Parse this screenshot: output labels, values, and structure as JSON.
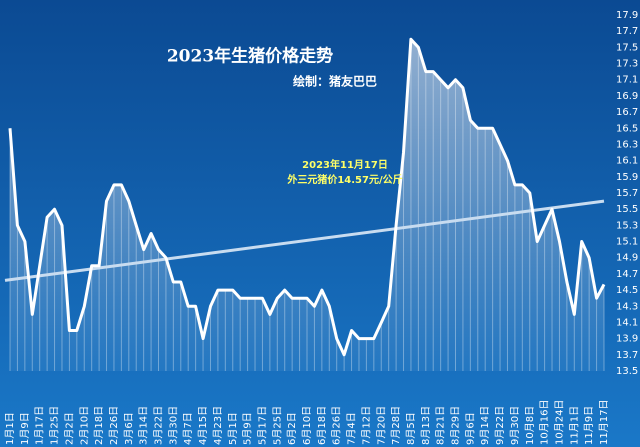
{
  "chart_data": {
    "type": "area-line",
    "title": "2023年生猪价格走势",
    "subtitle": "绘制：猪友巴巴",
    "annotation": [
      "2023年11月17日",
      "外三元猪价14.57元/公斤"
    ],
    "color": "#ffffff",
    "categories": [
      "1月1日",
      null,
      "1月9日",
      null,
      "1月17日",
      null,
      "1月25日",
      null,
      "2月2日",
      null,
      "2月10日",
      null,
      "2月18日",
      null,
      "2月26日",
      null,
      "3月6日",
      null,
      "3月14日",
      null,
      "3月22日",
      null,
      "3月30日",
      null,
      "4月7日",
      null,
      "4月15日",
      null,
      "4月23日",
      null,
      "5月1日",
      null,
      "5月9日",
      null,
      "5月17日",
      null,
      "5月25日",
      null,
      "6月2日",
      null,
      "6月10日",
      null,
      "6月18日",
      null,
      "6月26日",
      null,
      "7月4日",
      null,
      "7月12日",
      null,
      "7月20日",
      null,
      "7月28日",
      null,
      "8月5日",
      null,
      "8月13日",
      null,
      "8月21日",
      null,
      "8月29日",
      null,
      "9月6日",
      null,
      "9月14日",
      null,
      "9月22日",
      null,
      "9月30日",
      null,
      "10月8日",
      null,
      "10月16日",
      null,
      "10月24日",
      null,
      "11月1日",
      null,
      "11月9日",
      null,
      "11月17日"
    ],
    "values": [
      16.5,
      15.3,
      15.1,
      14.2,
      14.8,
      15.4,
      15.5,
      15.3,
      14.0,
      14.0,
      14.3,
      14.8,
      14.8,
      15.6,
      15.8,
      15.8,
      15.6,
      15.3,
      15.0,
      15.2,
      15.0,
      14.9,
      14.6,
      14.6,
      14.3,
      14.3,
      13.9,
      14.3,
      14.5,
      14.5,
      14.5,
      14.4,
      14.4,
      14.4,
      14.4,
      14.2,
      14.4,
      14.5,
      14.4,
      14.4,
      14.4,
      14.3,
      14.5,
      14.3,
      13.9,
      13.7,
      14.0,
      13.9,
      13.9,
      13.9,
      14.1,
      14.3,
      15.3,
      16.2,
      17.6,
      17.5,
      17.2,
      17.2,
      17.1,
      17.0,
      17.1,
      17.0,
      16.6,
      16.5,
      16.5,
      16.5,
      16.3,
      16.1,
      15.8,
      15.8,
      15.7,
      15.1,
      15.3,
      15.5,
      15.1,
      14.6,
      14.2,
      15.1,
      14.9,
      14.4,
      14.57
    ],
    "trend_line": [
      14.62,
      15.6
    ],
    "ylim": [
      13.5,
      17.9
    ],
    "yticks": [
      13.5,
      13.7,
      13.9,
      14.1,
      14.3,
      14.5,
      14.7,
      14.9,
      15.1,
      15.3,
      15.5,
      15.7,
      15.9,
      16.1,
      16.3,
      16.5,
      16.7,
      16.9,
      17.1,
      17.3,
      17.5,
      17.7,
      17.9
    ]
  }
}
